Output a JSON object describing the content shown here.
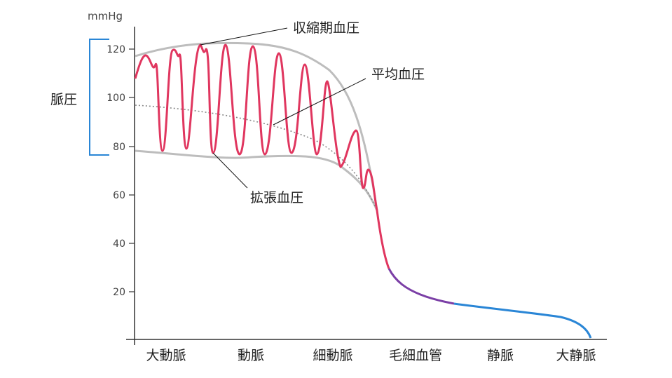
{
  "y_axis": {
    "unit": "mmHg",
    "ticks": [
      "120",
      "100",
      "80",
      "60",
      "40",
      "20"
    ]
  },
  "x_axis": {
    "vessels": [
      "大動脈",
      "動脈",
      "細動脈",
      "毛細血管",
      "静脈",
      "大静脈"
    ]
  },
  "annotations": {
    "systolic": "収縮期血圧",
    "mean": "平均血圧",
    "diastolic": "拡張血圧",
    "pulse_pressure": "脈圧"
  },
  "colors": {
    "arterial": "#e0365f",
    "capillary": "#7b3fa6",
    "venous": "#2a86d6",
    "envelope": "#bdbdbd",
    "mean_line": "#888888",
    "bracket": "#2a86d6",
    "axis": "#333333"
  }
}
